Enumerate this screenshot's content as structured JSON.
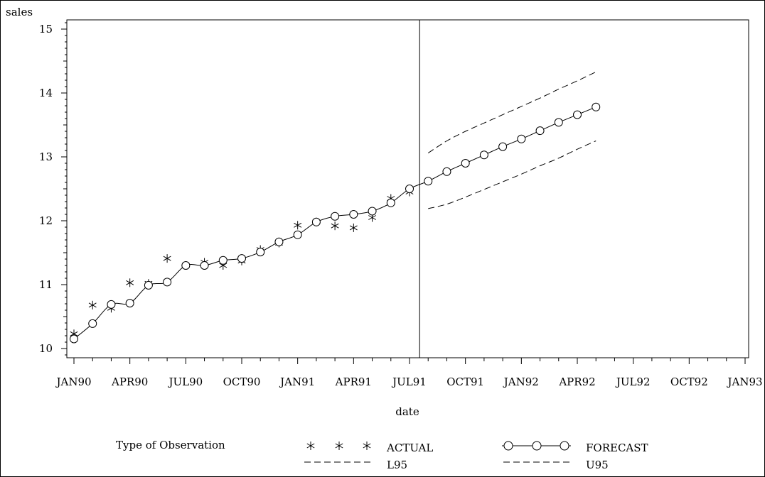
{
  "chart_data": {
    "type": "line",
    "xlabel": "date",
    "ylabel": "sales",
    "x_ticks": [
      "JAN90",
      "APR90",
      "JUL90",
      "OCT90",
      "JAN91",
      "APR91",
      "JUL91",
      "OCT91",
      "JAN92",
      "APR92",
      "JUL92",
      "OCT92",
      "JAN93"
    ],
    "y_ticks": [
      10,
      11,
      12,
      13,
      14,
      15
    ],
    "xlim": [
      "1990-01",
      "1993-01"
    ],
    "ylim": [
      9.9,
      15.1
    ],
    "reference_line_x": "1991-08",
    "legend": {
      "title": "Type of Observation",
      "placement": "bottom",
      "entries": [
        "ACTUAL",
        "FORECAST",
        "L95",
        "U95"
      ]
    },
    "series": [
      {
        "name": "ACTUAL",
        "style": "star",
        "x": [
          "1990-01",
          "1990-02",
          "1990-03",
          "1990-04",
          "1990-05",
          "1990-06",
          "1990-07",
          "1990-08",
          "1990-09",
          "1990-10",
          "1990-11",
          "1990-12",
          "1991-01",
          "1991-02",
          "1991-03",
          "1991-04",
          "1991-05",
          "1991-06",
          "1991-07"
        ],
        "values": [
          10.23,
          10.68,
          10.63,
          11.03,
          11.02,
          11.41,
          11.3,
          11.35,
          11.3,
          11.37,
          11.55,
          11.65,
          11.93,
          11.98,
          11.92,
          11.89,
          12.05,
          12.35,
          12.45
        ]
      },
      {
        "name": "FORECAST",
        "style": "circle-line",
        "x": [
          "1990-01",
          "1990-02",
          "1990-03",
          "1990-04",
          "1990-05",
          "1990-06",
          "1990-07",
          "1990-08",
          "1990-09",
          "1990-10",
          "1990-11",
          "1990-12",
          "1991-01",
          "1991-02",
          "1991-03",
          "1991-04",
          "1991-05",
          "1991-06",
          "1991-07",
          "1991-08",
          "1991-09",
          "1991-10",
          "1991-11",
          "1991-12",
          "1992-01",
          "1992-02",
          "1992-03",
          "1992-04",
          "1992-05"
        ],
        "values": [
          10.15,
          10.39,
          10.69,
          10.71,
          10.99,
          11.04,
          11.3,
          11.3,
          11.38,
          11.41,
          11.51,
          11.67,
          11.78,
          11.98,
          12.07,
          12.1,
          12.15,
          12.28,
          12.5,
          12.62,
          12.77,
          12.9,
          13.03,
          13.16,
          13.28,
          13.41,
          13.54,
          13.66,
          13.78
        ]
      },
      {
        "name": "L95",
        "style": "dashed",
        "x": [
          "1991-08",
          "1991-09",
          "1991-10",
          "1991-11",
          "1991-12",
          "1992-01",
          "1992-02",
          "1992-03",
          "1992-04",
          "1992-05"
        ],
        "values": [
          12.19,
          12.26,
          12.37,
          12.49,
          12.61,
          12.73,
          12.86,
          12.98,
          13.12,
          13.25
        ]
      },
      {
        "name": "U95",
        "style": "dashed",
        "x": [
          "1991-08",
          "1991-09",
          "1991-10",
          "1991-11",
          "1991-12",
          "1992-01",
          "1992-02",
          "1992-03",
          "1992-04",
          "1992-05"
        ],
        "values": [
          13.06,
          13.25,
          13.4,
          13.53,
          13.66,
          13.79,
          13.92,
          14.06,
          14.19,
          14.33
        ]
      }
    ]
  }
}
